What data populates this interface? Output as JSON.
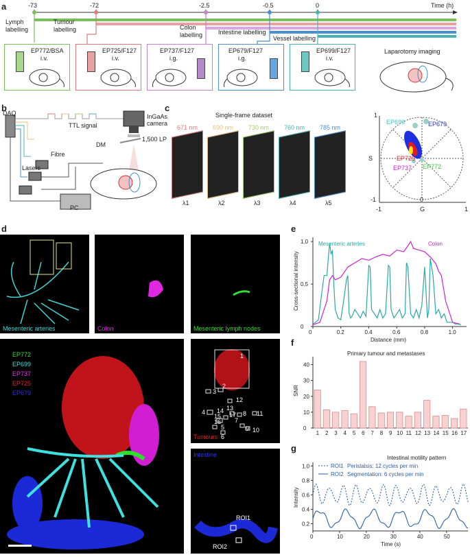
{
  "panels": {
    "a": "a",
    "b": "b",
    "c": "c",
    "d": "d",
    "e": "e",
    "f": "f",
    "g": "g"
  },
  "timeline": {
    "axis_label": "Time (h)",
    "ticks": [
      "-73",
      "-72",
      "-2.5",
      "-0.5",
      "0"
    ],
    "events": [
      {
        "label": "Lymph labelling",
        "color": "#7bbf5a"
      },
      {
        "label": "Tumour labelling",
        "color": "#e07a7a"
      },
      {
        "label": "Colon labelling",
        "color": "#c77fd1"
      },
      {
        "label": "Intestine labelling",
        "color": "#4a8fd0"
      },
      {
        "label": "Vessel labelling",
        "color": "#49b3b0"
      }
    ],
    "end_label": "Laparotomy imaging",
    "boxes": [
      {
        "dye": "EP772/BSA",
        "route": "i.v.",
        "color": "#7bbf5a"
      },
      {
        "dye": "EP725/F127",
        "route": "i.v.",
        "color": "#e07a7a"
      },
      {
        "dye": "EP737/F127",
        "route": "i.g.",
        "color": "#c77fd1"
      },
      {
        "dye": "EP679/F127",
        "route": "i.g.",
        "color": "#4a8fd0"
      },
      {
        "dye": "EP699/F127",
        "route": "i.v.",
        "color": "#49b3b0"
      }
    ]
  },
  "setup": {
    "daq": "DAQ",
    "ttl": "TTL signal",
    "camera": "InGaAs camera",
    "lp": "1,500 LP",
    "dm": "DM",
    "fibre": "Fibre",
    "lasers": "Lasers",
    "pc": "PC",
    "lambda": [
      "λ1",
      "λ2",
      "λ3",
      "λ4",
      "λ5"
    ]
  },
  "dataset": {
    "title": "Single-frame dataset",
    "wavelengths": [
      {
        "nm": "671 nm",
        "color": "#e07a7a",
        "lam": "λ1"
      },
      {
        "nm": "690 nm",
        "color": "#e8c07a",
        "lam": "λ2"
      },
      {
        "nm": "730 nm",
        "color": "#a5cf6a",
        "lam": "λ3"
      },
      {
        "nm": "760 nm",
        "color": "#49b3b0",
        "lam": "λ4"
      },
      {
        "nm": "785 nm",
        "color": "#4a8fd0",
        "lam": "λ5"
      }
    ]
  },
  "phasor": {
    "labels": [
      {
        "text": "EP699",
        "color": "#3fbfbf"
      },
      {
        "text": "EP679",
        "color": "#2233cc"
      },
      {
        "text": "EP725",
        "color": "#e02020"
      },
      {
        "text": "EP737",
        "color": "#d020d0"
      },
      {
        "text": "EP772",
        "color": "#33cc33"
      }
    ],
    "s": "S",
    "g": "G",
    "one": "1",
    "neg_one": "-1",
    "zero": "0"
  },
  "d_panels": {
    "arteries": "Mesenteric arteries",
    "colon": "Colon",
    "lymph": "Mesenteric lymph nodes",
    "tumours": "Tumours",
    "intestine": "Intestine",
    "roi1": "ROI1",
    "roi2": "ROI2",
    "legend": [
      {
        "text": "EP772",
        "color": "#33dd33"
      },
      {
        "text": "EP699",
        "color": "#33dddd"
      },
      {
        "text": "EP737",
        "color": "#ee33ee"
      },
      {
        "text": "EP725",
        "color": "#ee2222"
      },
      {
        "text": "EP679",
        "color": "#2233ee"
      }
    ],
    "tumour_ids": [
      "1",
      "2",
      "3",
      "4",
      "5",
      "6",
      "7",
      "8",
      "9",
      "10",
      "11",
      "12",
      "13",
      "14",
      "15",
      "16",
      "17"
    ]
  },
  "chart_data": [
    {
      "type": "line",
      "panel": "e",
      "xlabel": "Distance (mm)",
      "ylabel": "Cross-sectional intensity",
      "xlim": [
        0,
        1.1
      ],
      "ylim": [
        0,
        1.05
      ],
      "xticks": [
        "0",
        "0.2",
        "0.4",
        "0.6",
        "0.8",
        "1.0"
      ],
      "yticks": [
        "0",
        "0.5",
        "1.0"
      ],
      "series": [
        {
          "name": "Mesenteric arteries",
          "color": "#2aa7a7",
          "x": [
            0,
            0.02,
            0.04,
            0.06,
            0.08,
            0.1,
            0.12,
            0.13,
            0.14,
            0.15,
            0.16,
            0.18,
            0.2,
            0.22,
            0.24,
            0.25,
            0.26,
            0.27,
            0.28,
            0.3,
            0.32,
            0.34,
            0.36,
            0.38,
            0.4,
            0.41,
            0.42,
            0.44,
            0.46,
            0.48,
            0.5,
            0.52,
            0.54,
            0.55,
            0.56,
            0.58,
            0.6,
            0.62,
            0.64,
            0.66,
            0.67,
            0.68,
            0.7,
            0.72,
            0.74,
            0.76,
            0.78,
            0.8,
            0.82,
            0.83,
            0.84,
            0.86,
            0.88,
            0.9,
            0.92,
            0.94,
            0.96,
            0.98,
            1.0,
            1.02,
            1.04,
            1.06
          ],
          "y": [
            0.03,
            0.05,
            0.08,
            0.35,
            0.6,
            0.6,
            0.98,
            0.85,
            0.9,
            0.5,
            0.2,
            0.1,
            0.08,
            0.3,
            0.55,
            0.6,
            0.15,
            0.1,
            0.12,
            0.2,
            0.15,
            0.1,
            0.18,
            0.12,
            0.72,
            0.7,
            0.2,
            0.15,
            0.1,
            0.2,
            0.1,
            0.15,
            0.72,
            0.7,
            0.2,
            0.1,
            0.15,
            0.2,
            0.1,
            0.15,
            0.75,
            0.7,
            0.15,
            0.1,
            0.2,
            0.1,
            0.25,
            0.7,
            0.1,
            0.2,
            0.8,
            0.6,
            0.15,
            0.2,
            0.1,
            0.15,
            0.05,
            0.05,
            0.05,
            0.03,
            0.03,
            0.02
          ]
        },
        {
          "name": "Colon",
          "color": "#d020d0",
          "x": [
            0,
            0.05,
            0.1,
            0.12,
            0.14,
            0.16,
            0.2,
            0.25,
            0.3,
            0.35,
            0.4,
            0.45,
            0.5,
            0.55,
            0.6,
            0.65,
            0.68,
            0.7,
            0.72,
            0.76,
            0.8,
            0.84,
            0.86,
            0.88,
            0.9,
            0.92,
            0.95,
            1.0,
            1.05
          ],
          "y": [
            0.02,
            0.05,
            0.3,
            0.55,
            0.6,
            0.55,
            0.58,
            0.7,
            0.75,
            0.8,
            0.78,
            0.82,
            0.85,
            0.83,
            0.9,
            0.88,
            0.95,
            1.0,
            0.92,
            0.9,
            0.88,
            0.82,
            0.78,
            0.74,
            0.65,
            0.6,
            0.3,
            0.05,
            0.03
          ]
        }
      ]
    },
    {
      "type": "bar",
      "panel": "f",
      "title": "Primary tumour and metastases",
      "ylabel": "SNR",
      "ylim": [
        0,
        45
      ],
      "yticks": [
        "0",
        "10",
        "20",
        "30",
        "40"
      ],
      "categories": [
        "1",
        "2",
        "3",
        "4",
        "5",
        "6",
        "7",
        "8",
        "9",
        "10",
        "11",
        "12",
        "13",
        "14",
        "15",
        "16",
        "17"
      ],
      "values": [
        24,
        11.5,
        10,
        11,
        9,
        42,
        13.5,
        9.5,
        10,
        10,
        7.5,
        10,
        17.5,
        7.5,
        8,
        6,
        12
      ]
    },
    {
      "type": "line",
      "panel": "g",
      "title": "Intestinal motility pattern",
      "xlabel": "Time (s)",
      "ylabel": "Intensity",
      "xlim": [
        0,
        58
      ],
      "ylim": [
        0.1,
        1.05
      ],
      "xticks": [
        "0",
        "10",
        "20",
        "30",
        "40",
        "50"
      ],
      "yticks": [
        "0.2",
        "0.4",
        "0.6",
        "0.8",
        "1.0"
      ],
      "series": [
        {
          "name": "ROI1",
          "legend": "Peristalsis: 12 cycles per min",
          "dashed": true,
          "period": 5,
          "base": 0.6,
          "amp": 0.12
        },
        {
          "name": "ROI2",
          "legend": "Segmentation: 6 cycles per min",
          "dashed": false,
          "period": 10,
          "base": 0.27,
          "amp": 0.11
        }
      ]
    }
  ],
  "scale_bar": ""
}
